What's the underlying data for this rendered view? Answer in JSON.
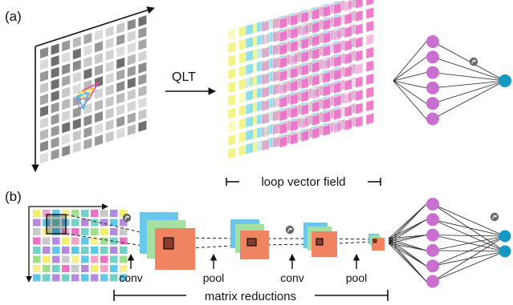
{
  "panel_a": {
    "label": "(a)",
    "transform_label": "QLT",
    "field_caption": "loop vector field"
  },
  "panel_b": {
    "label": "(b)",
    "step_labels": [
      "conv",
      "pool",
      "conv",
      "pool"
    ],
    "bracket_caption": "matrix reductions"
  },
  "colors": {
    "neuron": "#c86fd0",
    "output_neuron": "#1599c4",
    "field_layers": [
      "#f2f27c",
      "#7fd9ec",
      "#d9a0cc",
      "#ee6fc5"
    ],
    "conv_back": "#6cc8ea",
    "conv_mid": "#a4e0a0",
    "conv_front": "#f08462",
    "activation_icon": "#666666"
  },
  "network_a": {
    "inputs": 6,
    "outputs": 1
  },
  "network_b": {
    "inputs": 6,
    "outputs": 2
  }
}
